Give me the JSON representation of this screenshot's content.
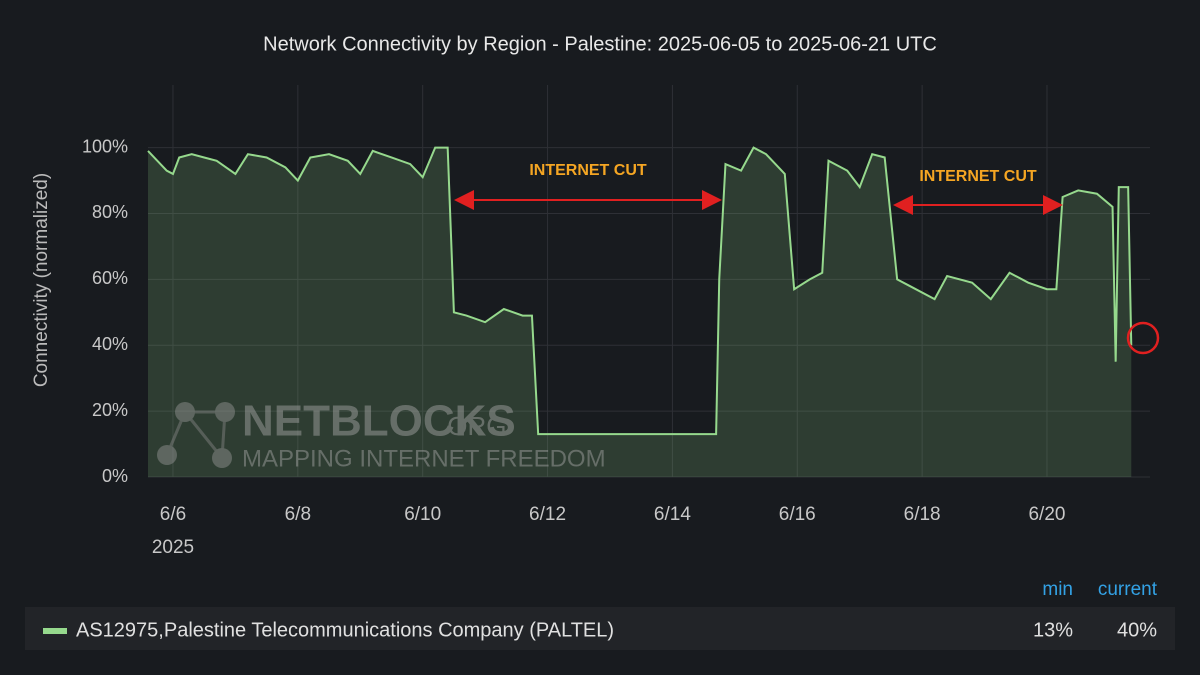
{
  "chart_data": {
    "type": "line",
    "title": "Network Connectivity by Region - Palestine: 2025-06-05 to 2025-06-21 UTC",
    "y_axis_label": "Connectivity (normalized)",
    "x_year_label": "2025",
    "x": [
      5.6,
      5.75,
      5.9,
      6.0,
      6.1,
      6.3,
      6.5,
      6.7,
      7.0,
      7.2,
      7.5,
      7.8,
      8.0,
      8.2,
      8.5,
      8.8,
      9.0,
      9.2,
      9.5,
      9.8,
      10.0,
      10.2,
      10.4,
      10.5,
      10.7,
      11.0,
      11.3,
      11.6,
      11.75,
      11.85,
      12.5,
      13.5,
      14.7,
      14.75,
      14.85,
      15.1,
      15.3,
      15.5,
      15.8,
      15.95,
      16.2,
      16.4,
      16.5,
      16.8,
      17.0,
      17.2,
      17.4,
      17.6,
      17.8,
      18.2,
      18.4,
      18.8,
      19.1,
      19.4,
      19.7,
      20.0,
      20.15,
      20.25,
      20.5,
      20.8,
      21.05,
      21.1,
      21.15,
      21.3,
      21.35
    ],
    "series": [
      {
        "name": "AS12975,Palestine Telecommunications Company (PALTEL)",
        "color": "#96d98d",
        "values": [
          99,
          96,
          93,
          92,
          97,
          98,
          97,
          96,
          92,
          98,
          97,
          94,
          90,
          97,
          98,
          96,
          92,
          99,
          97,
          95,
          91,
          100,
          100,
          50,
          49,
          47,
          51,
          49,
          49,
          13,
          13,
          13,
          13,
          60,
          95,
          93,
          100,
          98,
          92,
          57,
          60,
          62,
          96,
          93,
          88,
          98,
          97,
          60,
          58,
          54,
          61,
          59,
          54,
          62,
          59,
          57,
          57,
          85,
          87,
          86,
          82,
          35,
          88,
          88,
          40
        ],
        "legend_values": [
          "13%",
          "40%"
        ]
      }
    ],
    "legend_columns": [
      "min",
      "current"
    ],
    "xlim": [
      5.6,
      21.65
    ],
    "xticks": [
      {
        "value": 6,
        "label": "6/6"
      },
      {
        "value": 8,
        "label": "6/8"
      },
      {
        "value": 10,
        "label": "6/10"
      },
      {
        "value": 12,
        "label": "6/12"
      },
      {
        "value": 14,
        "label": "6/14"
      },
      {
        "value": 16,
        "label": "6/16"
      },
      {
        "value": 18,
        "label": "6/18"
      },
      {
        "value": 20,
        "label": "6/20"
      }
    ],
    "ylim": [
      0,
      119
    ],
    "yticks": [
      {
        "value": 0,
        "label": "0%"
      },
      {
        "value": 20,
        "label": "20%"
      },
      {
        "value": 40,
        "label": "40%"
      },
      {
        "value": 60,
        "label": "60%"
      },
      {
        "value": 80,
        "label": "80%"
      },
      {
        "value": 100,
        "label": "100%"
      }
    ],
    "grid": true,
    "annotations": [
      "INTERNET CUT",
      "INTERNET CUT"
    ],
    "watermark": {
      "brand": "NETBLOCKS",
      "suffix": ".ORG",
      "tagline": "MAPPING INTERNET FREEDOM"
    }
  }
}
